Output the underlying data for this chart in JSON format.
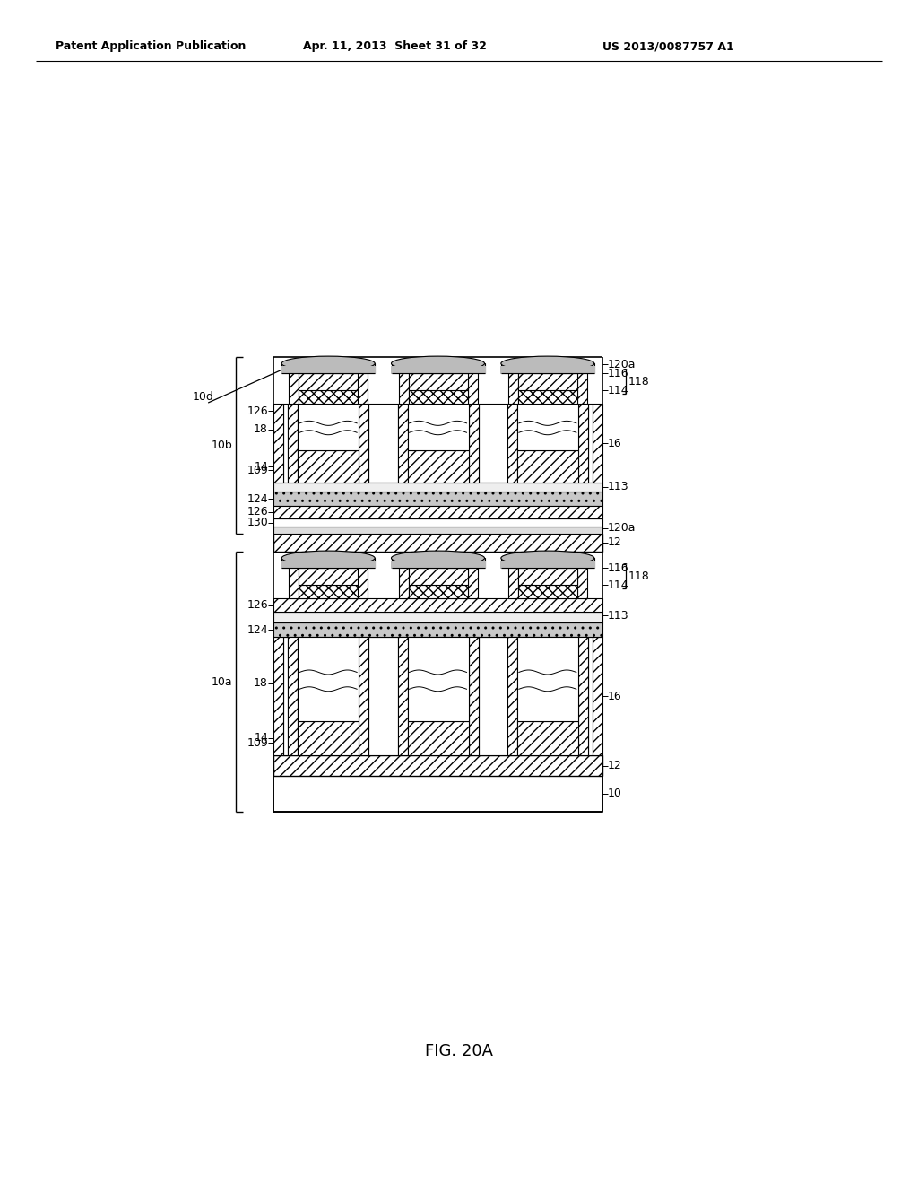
{
  "bg_color": "#ffffff",
  "header_left": "Patent Application Publication",
  "header_mid": "Apr. 11, 2013  Sheet 31 of 32",
  "header_right": "US 2013/0087757 A1",
  "caption": "FIG. 20A"
}
